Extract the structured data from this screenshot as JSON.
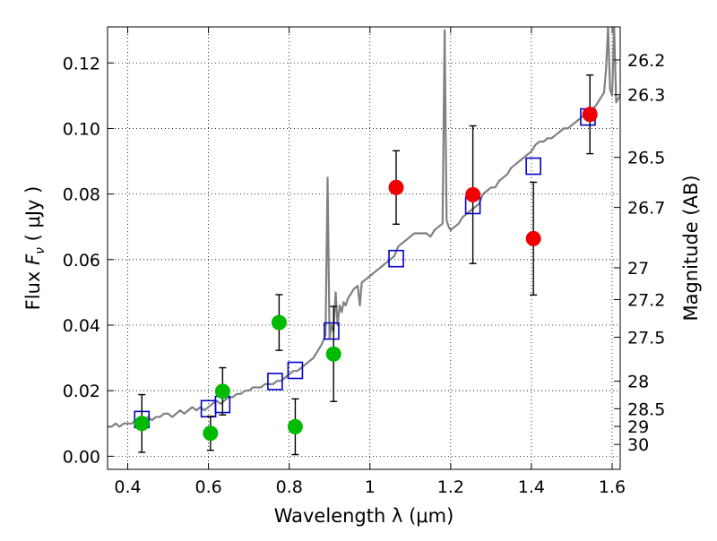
{
  "chart_data": {
    "type": "scatter",
    "title": "",
    "xlabel": "Wavelength  λ (μm)",
    "ylabel": "Flux  F_ν  ( μJy )",
    "ylabel_right": "Magnitude (AB)",
    "xlim": [
      0.35,
      1.62
    ],
    "ylim": [
      -0.004,
      0.131
    ],
    "grid": true,
    "legend": "none",
    "x_ticks": [
      0.4,
      0.6,
      0.8,
      1.0,
      1.2,
      1.4,
      1.6
    ],
    "x_tick_labels": [
      "0.4",
      "0.6",
      "0.8",
      "1",
      "1.2",
      "1.4",
      "1.6"
    ],
    "y_ticks": [
      0.0,
      0.02,
      0.04,
      0.06,
      0.08,
      0.1,
      0.12
    ],
    "y_tick_labels": [
      "0.00",
      "0.02",
      "0.04",
      "0.06",
      "0.08",
      "0.10",
      "0.12"
    ],
    "right_ticks": [
      {
        "flux": 0.1209,
        "label": "26.2"
      },
      {
        "flux": 0.1103,
        "label": "26.3"
      },
      {
        "flux": 0.0912,
        "label": "26.5"
      },
      {
        "flux": 0.0759,
        "label": "26.7"
      },
      {
        "flux": 0.0575,
        "label": "27"
      },
      {
        "flux": 0.0478,
        "label": "27.2"
      },
      {
        "flux": 0.0363,
        "label": "27.5"
      },
      {
        "flux": 0.0229,
        "label": "28"
      },
      {
        "flux": 0.0145,
        "label": "28.5"
      },
      {
        "flux": 0.0091,
        "label": "29"
      },
      {
        "flux": 0.0036,
        "label": "30"
      }
    ],
    "series": [
      {
        "type": "line",
        "color": "#808080",
        "x": [
          0.35,
          0.36,
          0.37,
          0.38,
          0.39,
          0.4,
          0.41,
          0.42,
          0.43,
          0.44,
          0.45,
          0.46,
          0.47,
          0.48,
          0.49,
          0.5,
          0.51,
          0.52,
          0.53,
          0.54,
          0.55,
          0.56,
          0.57,
          0.58,
          0.59,
          0.6,
          0.61,
          0.62,
          0.63,
          0.64,
          0.65,
          0.66,
          0.67,
          0.68,
          0.69,
          0.7,
          0.71,
          0.72,
          0.73,
          0.74,
          0.75,
          0.76,
          0.77,
          0.78,
          0.79,
          0.8,
          0.81,
          0.82,
          0.83,
          0.84,
          0.85,
          0.86,
          0.87,
          0.88,
          0.89,
          0.895,
          0.9,
          0.905,
          0.91,
          0.915,
          0.92,
          0.925,
          0.93,
          0.935,
          0.94,
          0.945,
          0.95,
          0.96,
          0.97,
          0.975,
          0.98,
          0.99,
          1.0,
          1.01,
          1.02,
          1.03,
          1.04,
          1.05,
          1.06,
          1.07,
          1.08,
          1.09,
          1.1,
          1.11,
          1.12,
          1.13,
          1.14,
          1.15,
          1.16,
          1.17,
          1.18,
          1.185,
          1.19,
          1.195,
          1.2,
          1.21,
          1.22,
          1.23,
          1.24,
          1.25,
          1.26,
          1.27,
          1.28,
          1.29,
          1.3,
          1.31,
          1.32,
          1.33,
          1.34,
          1.35,
          1.36,
          1.37,
          1.38,
          1.39,
          1.4,
          1.41,
          1.42,
          1.43,
          1.44,
          1.45,
          1.46,
          1.47,
          1.48,
          1.49,
          1.5,
          1.51,
          1.52,
          1.53,
          1.54,
          1.55,
          1.56,
          1.57,
          1.58,
          1.585,
          1.59,
          1.595,
          1.6,
          1.605,
          1.61,
          1.62
        ],
        "y": [
          0.009,
          0.009,
          0.01,
          0.009,
          0.01,
          0.01,
          0.01,
          0.011,
          0.012,
          0.011,
          0.012,
          0.011,
          0.012,
          0.012,
          0.013,
          0.013,
          0.012,
          0.013,
          0.014,
          0.013,
          0.014,
          0.015,
          0.014,
          0.015,
          0.014,
          0.015,
          0.016,
          0.017,
          0.016,
          0.017,
          0.018,
          0.018,
          0.019,
          0.019,
          0.02,
          0.02,
          0.021,
          0.021,
          0.021,
          0.022,
          0.022,
          0.022,
          0.023,
          0.023,
          0.024,
          0.025,
          0.026,
          0.026,
          0.027,
          0.028,
          0.029,
          0.03,
          0.032,
          0.034,
          0.037,
          0.085,
          0.036,
          0.04,
          0.038,
          0.05,
          0.04,
          0.046,
          0.044,
          0.047,
          0.046,
          0.048,
          0.049,
          0.051,
          0.052,
          0.046,
          0.053,
          0.054,
          0.055,
          0.056,
          0.057,
          0.058,
          0.059,
          0.06,
          0.061,
          0.064,
          0.065,
          0.066,
          0.067,
          0.068,
          0.068,
          0.068,
          0.068,
          0.067,
          0.069,
          0.07,
          0.071,
          0.13,
          0.072,
          0.07,
          0.069,
          0.07,
          0.071,
          0.073,
          0.074,
          0.075,
          0.076,
          0.077,
          0.08,
          0.081,
          0.082,
          0.082,
          0.084,
          0.085,
          0.086,
          0.088,
          0.089,
          0.09,
          0.091,
          0.092,
          0.093,
          0.095,
          0.096,
          0.096,
          0.097,
          0.097,
          0.098,
          0.099,
          0.1,
          0.1,
          0.101,
          0.102,
          0.103,
          0.104,
          0.105,
          0.106,
          0.107,
          0.109,
          0.111,
          0.118,
          0.131,
          0.112,
          0.11,
          0.131,
          0.108,
          0.11
        ]
      },
      {
        "type": "scatter",
        "marker": "square-open",
        "color": "#0000cc",
        "x": [
          0.435,
          0.6,
          0.635,
          0.765,
          0.815,
          0.905,
          1.065,
          1.255,
          1.405,
          1.54
        ],
        "y": [
          0.0112,
          0.0145,
          0.0158,
          0.0228,
          0.0262,
          0.0382,
          0.0603,
          0.0765,
          0.0885,
          0.1035
        ]
      },
      {
        "type": "scatter",
        "marker": "circle",
        "color": "#00bb00",
        "x": [
          0.435,
          0.605,
          0.635,
          0.775,
          0.815,
          0.91
        ],
        "y": [
          0.01,
          0.007,
          0.0198,
          0.0408,
          0.009,
          0.0312
        ],
        "yerr": [
          0.0088,
          0.0052,
          0.0072,
          0.0085,
          0.0085,
          0.0145
        ]
      },
      {
        "type": "scatter",
        "marker": "circle",
        "color": "#ee0000",
        "x": [
          1.065,
          1.255,
          1.405,
          1.545
        ],
        "y": [
          0.082,
          0.0798,
          0.0664,
          0.1043
        ],
        "yerr": [
          0.0112,
          0.021,
          0.0172,
          0.012
        ]
      }
    ]
  }
}
